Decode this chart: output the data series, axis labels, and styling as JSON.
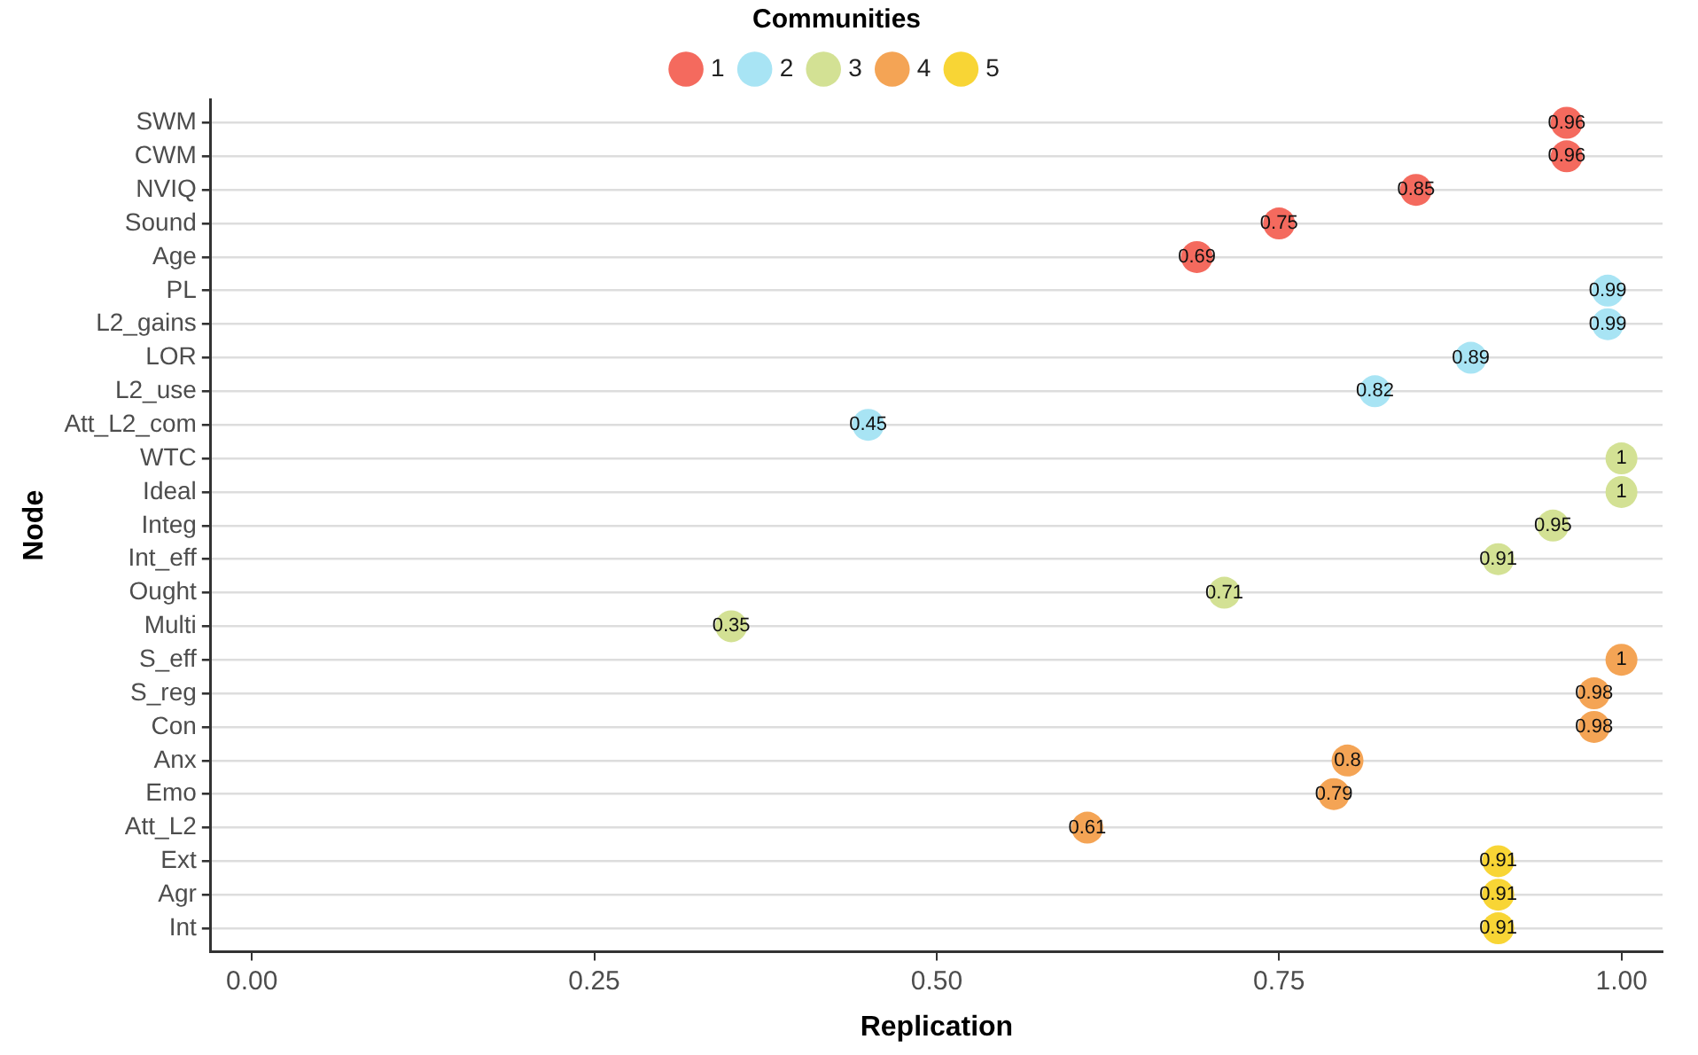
{
  "chart_data": {
    "type": "scatter",
    "orientation": "horizontal",
    "xlabel": "Replication",
    "ylabel": "Node",
    "legend_title": "Communities",
    "legend": "top",
    "grid": "y",
    "marker": "circle",
    "data_labels": true,
    "categories": [
      "SWM",
      "CWM",
      "NVIQ",
      "Sound",
      "Age",
      "PL",
      "L2_gains",
      "LOR",
      "L2_use",
      "Att_L2_com",
      "WTC",
      "Ideal",
      "Integ",
      "Int_eff",
      "Ought",
      "Multi",
      "S_eff",
      "S_reg",
      "Con",
      "Anx",
      "Emo",
      "Att_L2",
      "Ext",
      "Agr",
      "Int"
    ],
    "xlim": [
      -0.03,
      1.03
    ],
    "xticks": [
      {
        "value": 0,
        "label": "0.00"
      },
      {
        "value": 0.25,
        "label": "0.25"
      },
      {
        "value": 0.5,
        "label": "0.50"
      },
      {
        "value": 0.75,
        "label": "0.75"
      },
      {
        "value": 1,
        "label": "1.00"
      }
    ],
    "series": [
      {
        "name": "1",
        "color": "#f46a5e",
        "values": [
          0.96,
          0.96,
          0.85,
          0.75,
          0.69,
          null,
          null,
          null,
          null,
          null,
          null,
          null,
          null,
          null,
          null,
          null,
          null,
          null,
          null,
          null,
          null,
          null,
          null,
          null,
          null
        ]
      },
      {
        "name": "2",
        "color": "#a8e4f4",
        "values": [
          null,
          null,
          null,
          null,
          null,
          0.99,
          0.99,
          0.89,
          0.82,
          0.45,
          null,
          null,
          null,
          null,
          null,
          null,
          null,
          null,
          null,
          null,
          null,
          null,
          null,
          null,
          null
        ]
      },
      {
        "name": "3",
        "color": "#d3e194",
        "values": [
          null,
          null,
          null,
          null,
          null,
          null,
          null,
          null,
          null,
          null,
          1,
          1,
          0.95,
          0.91,
          0.71,
          0.35,
          null,
          null,
          null,
          null,
          null,
          null,
          null,
          null,
          null
        ]
      },
      {
        "name": "4",
        "color": "#f4a455",
        "values": [
          null,
          null,
          null,
          null,
          null,
          null,
          null,
          null,
          null,
          null,
          null,
          null,
          null,
          null,
          null,
          null,
          1,
          0.98,
          0.98,
          0.8,
          0.79,
          0.61,
          null,
          null,
          null
        ]
      },
      {
        "name": "5",
        "color": "#f8d535",
        "values": [
          null,
          null,
          null,
          null,
          null,
          null,
          null,
          null,
          null,
          null,
          null,
          null,
          null,
          null,
          null,
          null,
          null,
          null,
          null,
          null,
          null,
          null,
          0.91,
          0.91,
          0.91
        ]
      }
    ]
  }
}
